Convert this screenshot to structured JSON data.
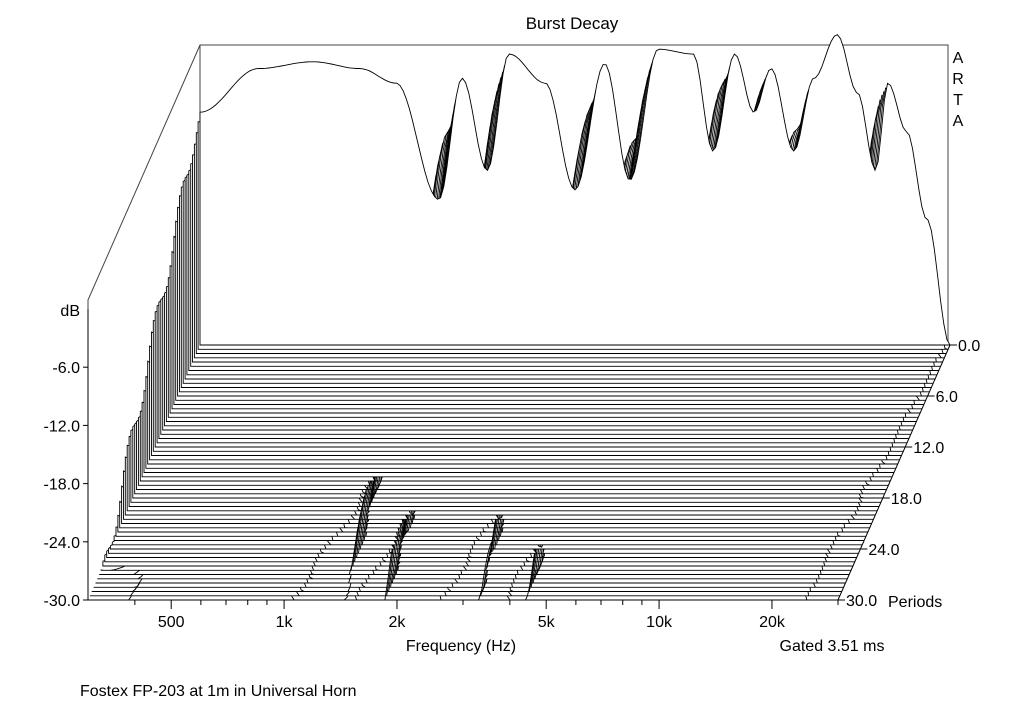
{
  "chart_data": {
    "type": "waterfall",
    "title": "Burst Decay",
    "watermark": [
      "A",
      "R",
      "T",
      "A"
    ],
    "xlabel": "Frequency (Hz)",
    "ylabel": "dB",
    "zlabel": "Periods",
    "gate_note": "Gated 3.51 ms",
    "footnote": "Fostex FP-203 at 1m in Universal Horn",
    "x_scale": "log",
    "x_range_hz": [
      300,
      30000
    ],
    "x_ticks": [
      {
        "hz": 500,
        "label": "500"
      },
      {
        "hz": 1000,
        "label": "1k"
      },
      {
        "hz": 2000,
        "label": "2k"
      },
      {
        "hz": 5000,
        "label": "5k"
      },
      {
        "hz": 10000,
        "label": "10k"
      },
      {
        "hz": 20000,
        "label": "20k"
      }
    ],
    "x_minor_ticks_hz": [
      400,
      600,
      700,
      800,
      900,
      3000,
      4000,
      6000,
      7000,
      8000,
      9000,
      30000
    ],
    "y_range_db": [
      -30,
      0
    ],
    "y_ticks": [
      {
        "db": -6,
        "label": "-6.0"
      },
      {
        "db": -12,
        "label": "-12.0"
      },
      {
        "db": -18,
        "label": "-18.0"
      },
      {
        "db": -24,
        "label": "-24.0"
      },
      {
        "db": -30,
        "label": "-30.0"
      }
    ],
    "z_range_periods": [
      0,
      30
    ],
    "z_ticks": [
      {
        "periods": 0,
        "label": "0.0"
      },
      {
        "periods": 6,
        "label": "6.0"
      },
      {
        "periods": 12,
        "label": "12.0"
      },
      {
        "periods": 18,
        "label": "18.0"
      },
      {
        "periods": 24,
        "label": "24.0"
      },
      {
        "periods": 30,
        "label": "30.0"
      }
    ],
    "slice_count": 61,
    "grid": false,
    "front_response_db": [
      {
        "hz": 300,
        "db": -6.0
      },
      {
        "hz": 430,
        "db": -1.5
      },
      {
        "hz": 600,
        "db": -0.8
      },
      {
        "hz": 800,
        "db": -1.5
      },
      {
        "hz": 1000,
        "db": -3.0
      },
      {
        "hz": 1300,
        "db": -15.0
      },
      {
        "hz": 1500,
        "db": -2.5
      },
      {
        "hz": 1750,
        "db": -12.0
      },
      {
        "hz": 2000,
        "db": 0.0
      },
      {
        "hz": 2500,
        "db": -3.0
      },
      {
        "hz": 3000,
        "db": -14.0
      },
      {
        "hz": 3600,
        "db": -1.0
      },
      {
        "hz": 4200,
        "db": -13.0
      },
      {
        "hz": 5000,
        "db": 0.5
      },
      {
        "hz": 6200,
        "db": 0.0
      },
      {
        "hz": 7000,
        "db": -10.0
      },
      {
        "hz": 8000,
        "db": 0.0
      },
      {
        "hz": 9000,
        "db": -6.0
      },
      {
        "hz": 10000,
        "db": -1.5
      },
      {
        "hz": 11500,
        "db": -10.0
      },
      {
        "hz": 13000,
        "db": -2.5
      },
      {
        "hz": 15000,
        "db": 2.0
      },
      {
        "hz": 17000,
        "db": -4.0
      },
      {
        "hz": 19000,
        "db": -12.0
      },
      {
        "hz": 20500,
        "db": -3.0
      },
      {
        "hz": 23000,
        "db": -8.0
      },
      {
        "hz": 26000,
        "db": -17.0
      },
      {
        "hz": 30000,
        "db": -30.0
      }
    ],
    "decay_rate_db_per_period": [
      {
        "hz": 300,
        "rate": 0.6
      },
      {
        "hz": 1000,
        "rate": 0.55
      },
      {
        "hz": 3000,
        "rate": 0.5
      },
      {
        "hz": 5000,
        "rate": 0.45
      },
      {
        "hz": 8000,
        "rate": 0.3
      },
      {
        "hz": 10000,
        "rate": 0.25
      },
      {
        "hz": 15000,
        "rate": 0.3
      },
      {
        "hz": 20000,
        "rate": 0.2
      },
      {
        "hz": 30000,
        "rate": 0.5
      }
    ],
    "colors": {
      "line": "#000000",
      "fill": "#ffffff",
      "background": "#ffffff"
    }
  }
}
